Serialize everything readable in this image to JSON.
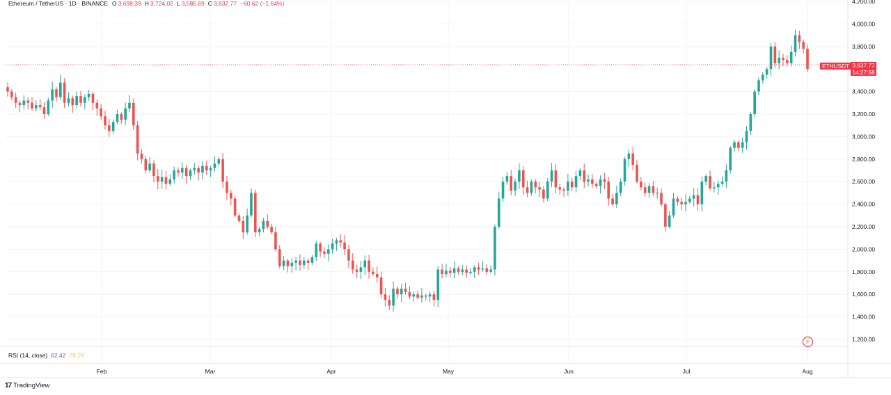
{
  "header": {
    "symbol": "Ethereum / TetherUS · 1D · BINANCE",
    "open_label": "O",
    "open": "3,698.39",
    "high_label": "H",
    "high": "3,724.02",
    "low_label": "L",
    "low": "3,585.69",
    "close_label": "C",
    "close": "3,637.77",
    "change": "−60.62 (−1.64%)"
  },
  "price_axis": [
    "4,200.00",
    "4,000.00",
    "3,800.00",
    "3,400.00",
    "3,200.00",
    "3,000.00",
    "2,800.00",
    "2,600.00",
    "2,400.00",
    "2,200.00",
    "2,000.00",
    "1,800.00",
    "1,600.00",
    "1,400.00",
    "1,200.00"
  ],
  "time_axis": [
    "Feb",
    "Mar",
    "Apr",
    "May",
    "Jun",
    "Jul",
    "Aug"
  ],
  "last_price": {
    "symbol_tag": "ETHUSDT",
    "price": "3,637.77",
    "countdown": "14:27:58"
  },
  "rsi": {
    "label": "RSI (14, close)",
    "value": "62.42",
    "ma": "78.29"
  },
  "brand": {
    "name": "TradingView",
    "mark": "17"
  },
  "colors": {
    "up": "#26a69a",
    "down": "#ef5350",
    "tag": "#f23645",
    "grid": "#f0f3fa",
    "text": "#131722"
  },
  "chart_data": {
    "type": "candlestick",
    "y_unit": "USDT",
    "ylim": [
      1200,
      4200
    ],
    "closes": [
      3400,
      3350,
      3300,
      3280,
      3320,
      3300,
      3250,
      3280,
      3260,
      3200,
      3320,
      3420,
      3350,
      3480,
      3300,
      3340,
      3280,
      3360,
      3300,
      3350,
      3380,
      3300,
      3250,
      3180,
      3100,
      3050,
      3130,
      3200,
      3150,
      3250,
      3300,
      3100,
      2850,
      2800,
      2700,
      2760,
      2650,
      2600,
      2640,
      2580,
      2620,
      2700,
      2680,
      2720,
      2650,
      2700,
      2720,
      2680,
      2740,
      2700,
      2720,
      2760,
      2800,
      2600,
      2500,
      2450,
      2300,
      2250,
      2150,
      2300,
      2500,
      2150,
      2180,
      2250,
      2200,
      2150,
      2000,
      1850,
      1900,
      1850,
      1880,
      1900,
      1860,
      1900,
      1880,
      1930,
      2050,
      1980,
      1960,
      2000,
      2050,
      2080,
      2060,
      2000,
      1900,
      1820,
      1800,
      1840,
      1900,
      1800,
      1780,
      1750,
      1600,
      1550,
      1500,
      1650,
      1600,
      1650,
      1620,
      1580,
      1600,
      1570,
      1590,
      1580,
      1600,
      1550,
      1820,
      1780,
      1810,
      1790,
      1830,
      1800,
      1820,
      1790,
      1800,
      1840,
      1820,
      1830,
      1800,
      1820,
      2200,
      2450,
      2600,
      2650,
      2520,
      2600,
      2700,
      2550,
      2500,
      2600,
      2550,
      2530,
      2450,
      2600,
      2700,
      2550,
      2530,
      2520,
      2600,
      2550,
      2650,
      2700,
      2600,
      2620,
      2580,
      2560,
      2620,
      2600,
      2450,
      2400,
      2500,
      2600,
      2800,
      2850,
      2750,
      2600,
      2550,
      2500,
      2560,
      2500,
      2500,
      2400,
      2200,
      2300,
      2450,
      2420,
      2400,
      2420,
      2450,
      2480,
      2400,
      2600,
      2650,
      2540,
      2550,
      2580,
      2600,
      2700,
      2900,
      2950,
      2900,
      2950,
      3050,
      3200,
      3400,
      3500,
      3550,
      3600,
      3800,
      3650,
      3700,
      3680,
      3650,
      3750,
      3900,
      3840,
      3780,
      3600
    ]
  }
}
